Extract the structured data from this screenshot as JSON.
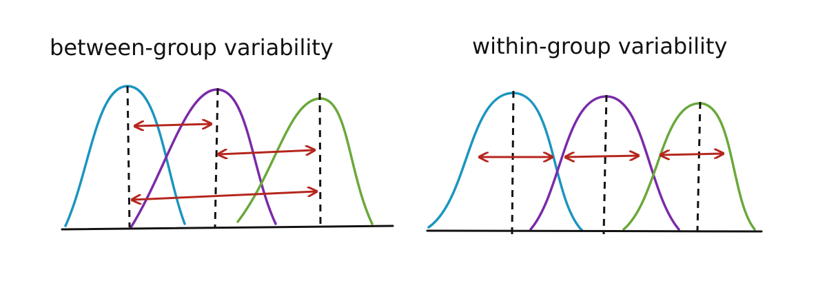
{
  "left": {
    "title": "between-group variability"
  },
  "right": {
    "title": "within-group variability"
  }
}
